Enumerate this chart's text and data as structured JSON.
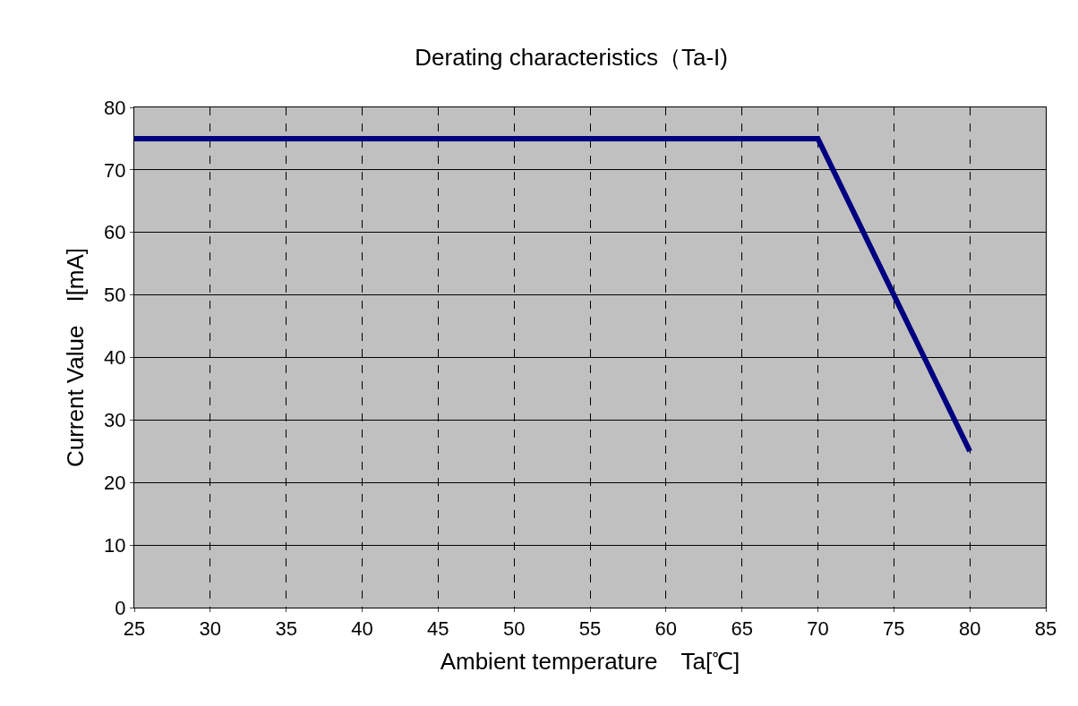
{
  "chart_data": {
    "type": "line",
    "title": "Derating characteristics（Ta-I)",
    "xlabel": "Ambient temperature　Ta[℃]",
    "ylabel": "Current Value　I[mA]",
    "x": [
      25,
      70,
      80
    ],
    "series": [
      {
        "color": "#000080",
        "values": [
          75,
          75,
          25
        ]
      }
    ],
    "xlim": [
      25,
      85
    ],
    "xticks": [
      25,
      30,
      35,
      40,
      45,
      50,
      55,
      60,
      65,
      70,
      75,
      80,
      85
    ],
    "ylim": [
      0,
      80
    ],
    "yticks": [
      0,
      10,
      20,
      30,
      40,
      50,
      60,
      70,
      80
    ],
    "grid": true,
    "marker": "none",
    "line_style": "solid"
  }
}
